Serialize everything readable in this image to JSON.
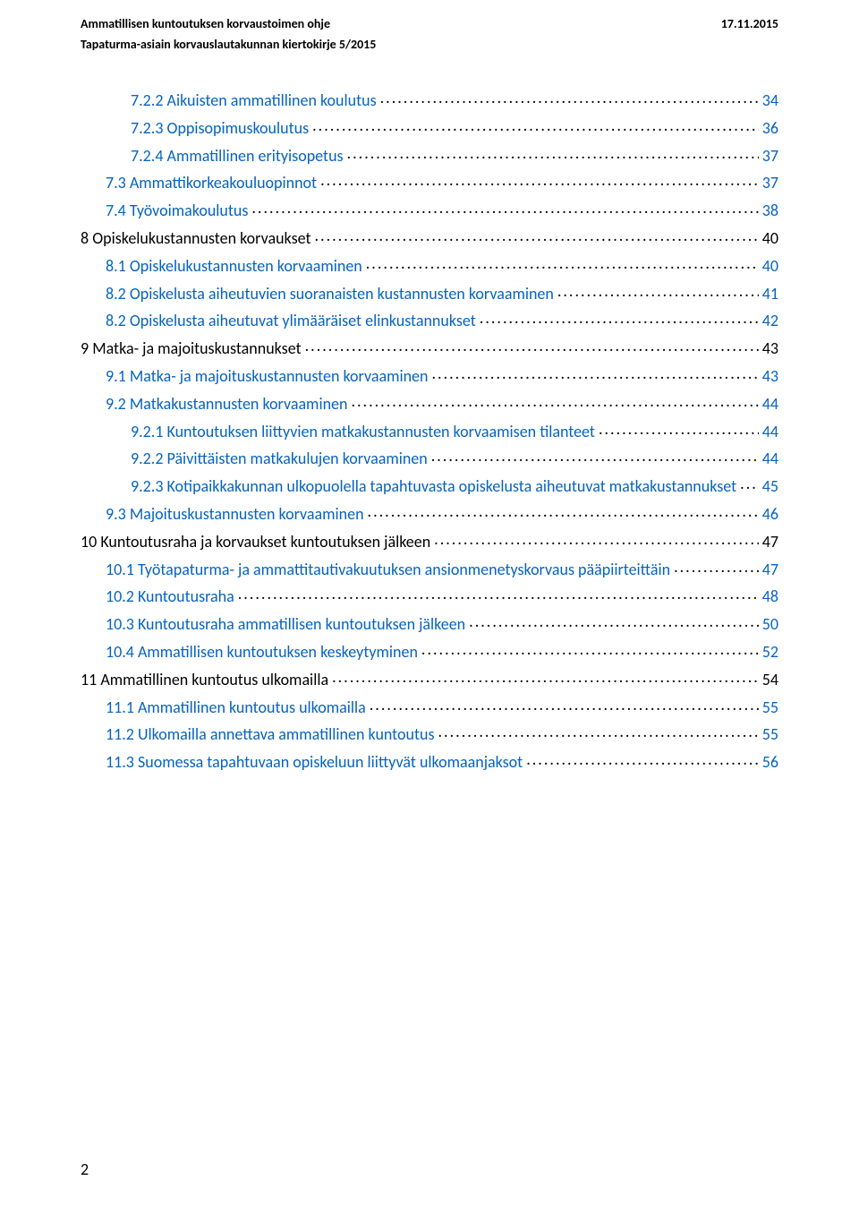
{
  "colors": {
    "text": "#000000",
    "link": "#0563c1",
    "background": "#ffffff"
  },
  "typography": {
    "header_fontsize_pt": 10.5,
    "toc_fontsize_pt": 13.5,
    "font_family": "Calibri"
  },
  "header": {
    "title_left": "Ammatillisen kuntoutuksen korvaustoimen ohje",
    "date_right": "17.11.2015",
    "subtitle": "Tapaturma-asiain korvauslautakunnan kiertokirje 5/2015"
  },
  "toc": [
    {
      "indent": 2,
      "color": "blue",
      "text": "7.2.2 Aikuisten ammatillinen koulutus",
      "page": "34"
    },
    {
      "indent": 2,
      "color": "blue",
      "text": "7.2.3 Oppisopimuskoulutus",
      "page": "36"
    },
    {
      "indent": 2,
      "color": "blue",
      "text": "7.2.4 Ammatillinen erityisopetus",
      "page": "37"
    },
    {
      "indent": 1,
      "color": "blue",
      "text": "7.3 Ammattikorkeakouluopinnot",
      "page": "37"
    },
    {
      "indent": 1,
      "color": "blue",
      "text": "7.4 Työvoimakoulutus",
      "page": "38"
    },
    {
      "indent": 0,
      "color": "black",
      "text": "8 Opiskelukustannusten korvaukset",
      "page": "40"
    },
    {
      "indent": 1,
      "color": "blue",
      "text": "8.1 Opiskelukustannusten korvaaminen",
      "page": "40"
    },
    {
      "indent": 1,
      "color": "blue",
      "text": "8.2 Opiskelusta aiheutuvien suoranaisten kustannusten korvaaminen",
      "page": "41"
    },
    {
      "indent": 1,
      "color": "blue",
      "text": "8.2 Opiskelusta aiheutuvat ylimääräiset elinkustannukset",
      "page": "42"
    },
    {
      "indent": 0,
      "color": "black",
      "text": "9 Matka- ja majoituskustannukset",
      "page": "43"
    },
    {
      "indent": 1,
      "color": "blue",
      "text": "9.1 Matka- ja majoituskustannusten korvaaminen",
      "page": "43"
    },
    {
      "indent": 1,
      "color": "blue",
      "text": "9.2 Matkakustannusten korvaaminen",
      "page": "44"
    },
    {
      "indent": 2,
      "color": "blue",
      "text": "9.2.1 Kuntoutuksen liittyvien matkakustannusten korvaamisen tilanteet",
      "page": "44"
    },
    {
      "indent": 2,
      "color": "blue",
      "text": "9.2.2 Päivittäisten matkakulujen korvaaminen",
      "page": "44"
    },
    {
      "indent": 2,
      "color": "blue",
      "text": "9.2.3 Kotipaikkakunnan ulkopuolella tapahtuvasta opiskelusta aiheutuvat matkakustannukset",
      "page": "45"
    },
    {
      "indent": 1,
      "color": "blue",
      "text": "9.3 Majoituskustannusten korvaaminen",
      "page": "46"
    },
    {
      "indent": 0,
      "color": "black",
      "text": "10 Kuntoutusraha ja korvaukset kuntoutuksen jälkeen",
      "page": "47"
    },
    {
      "indent": 1,
      "color": "blue",
      "text": "10.1 Työtapaturma- ja ammattitautivakuutuksen ansionmenetyskorvaus pääpiirteittäin",
      "page": "47"
    },
    {
      "indent": 1,
      "color": "blue",
      "text": "10.2 Kuntoutusraha",
      "page": "48"
    },
    {
      "indent": 1,
      "color": "blue",
      "text": "10.3 Kuntoutusraha ammatillisen kuntoutuksen jälkeen",
      "page": "50"
    },
    {
      "indent": 1,
      "color": "blue",
      "text": "10.4 Ammatillisen kuntoutuksen keskeytyminen",
      "page": "52"
    },
    {
      "indent": 0,
      "color": "black",
      "text": "11 Ammatillinen kuntoutus ulkomailla",
      "page": "54"
    },
    {
      "indent": 1,
      "color": "blue",
      "text": "11.1 Ammatillinen kuntoutus ulkomailla",
      "page": "55"
    },
    {
      "indent": 1,
      "color": "blue",
      "text": "11.2 Ulkomailla annettava ammatillinen kuntoutus",
      "page": "55"
    },
    {
      "indent": 1,
      "color": "blue",
      "text": "11.3 Suomessa tapahtuvaan opiskeluun liittyvät ulkomaanjaksot",
      "page": "56"
    }
  ],
  "page_number": "2"
}
